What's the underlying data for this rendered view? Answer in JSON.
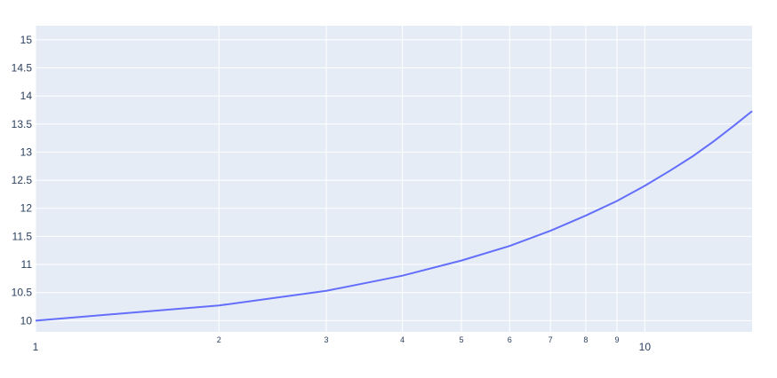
{
  "chart_data": {
    "type": "line",
    "title": "",
    "xlabel": "",
    "ylabel": "",
    "x_scale": "log",
    "x_range": [
      1,
      15
    ],
    "y_range": [
      9.8,
      15.25
    ],
    "x_ticks_major": [
      {
        "value": 1,
        "label": "1"
      },
      {
        "value": 10,
        "label": "10"
      }
    ],
    "x_ticks_minor": [
      {
        "value": 2,
        "label": "2"
      },
      {
        "value": 3,
        "label": "3"
      },
      {
        "value": 4,
        "label": "4"
      },
      {
        "value": 5,
        "label": "5"
      },
      {
        "value": 6,
        "label": "6"
      },
      {
        "value": 7,
        "label": "7"
      },
      {
        "value": 8,
        "label": "8"
      },
      {
        "value": 9,
        "label": "9"
      }
    ],
    "y_ticks": [
      {
        "value": 10,
        "label": "10"
      },
      {
        "value": 10.5,
        "label": "10.5"
      },
      {
        "value": 11,
        "label": "11"
      },
      {
        "value": 11.5,
        "label": "11.5"
      },
      {
        "value": 12,
        "label": "12"
      },
      {
        "value": 12.5,
        "label": "12.5"
      },
      {
        "value": 13,
        "label": "13"
      },
      {
        "value": 13.5,
        "label": "13.5"
      },
      {
        "value": 14,
        "label": "14"
      },
      {
        "value": 14.5,
        "label": "14.5"
      },
      {
        "value": 15,
        "label": "15"
      }
    ],
    "grid": true,
    "colors": {
      "background": "#e5ecf6",
      "grid": "#ffffff",
      "line": "#636efa",
      "tick_text": "#2a3f5f"
    },
    "series": [
      {
        "x": [
          1,
          2,
          3,
          4,
          5,
          6,
          7,
          8,
          9,
          10,
          11,
          12,
          13,
          14,
          15
        ],
        "y": [
          10.0,
          10.27,
          10.53,
          10.8,
          11.07,
          11.33,
          11.6,
          11.87,
          12.13,
          12.4,
          12.67,
          12.93,
          13.2,
          13.47,
          13.73
        ]
      }
    ]
  }
}
